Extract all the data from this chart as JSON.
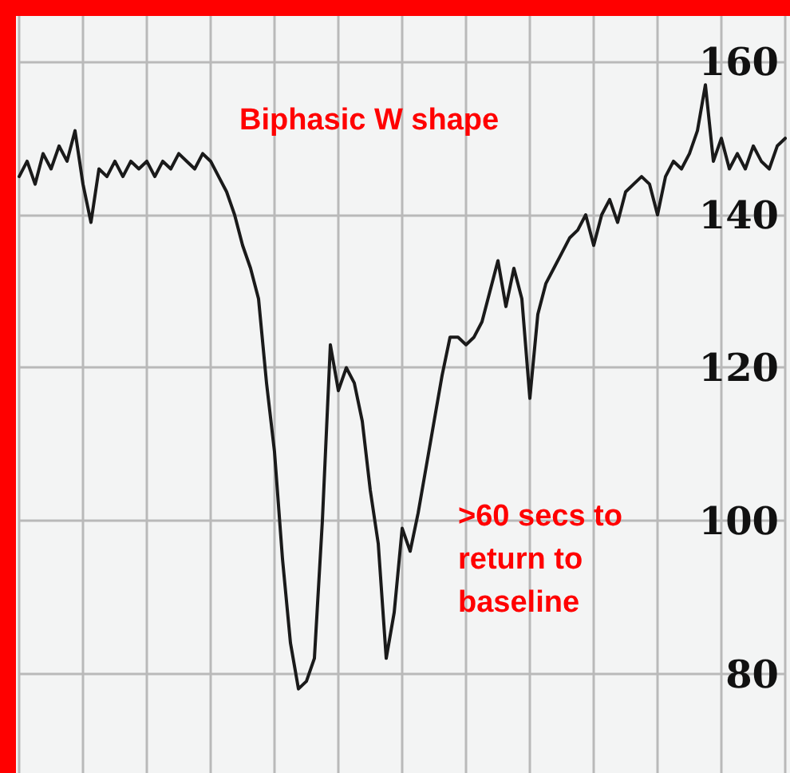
{
  "chart_data": {
    "type": "line",
    "categories": [
      null,
      null,
      null,
      null,
      null,
      null,
      null,
      null,
      null,
      null,
      null,
      null,
      null,
      null,
      null,
      null,
      null,
      null,
      null,
      null,
      null,
      null,
      null,
      null,
      null,
      null,
      null,
      null,
      null,
      null,
      null,
      null,
      null,
      null,
      null,
      null,
      null,
      null,
      null,
      null,
      null,
      null,
      null,
      null,
      null,
      null,
      null,
      null,
      null,
      null,
      null,
      null,
      null,
      null,
      null,
      null,
      null,
      null,
      null,
      null,
      null,
      null,
      null,
      null,
      null,
      null,
      null,
      null,
      null,
      null,
      null,
      null,
      null,
      null,
      null,
      null,
      null,
      null,
      null,
      null,
      null,
      null,
      null,
      null,
      null,
      null,
      null,
      null,
      null,
      null,
      null,
      null,
      null,
      null,
      null,
      null,
      null
    ],
    "series": [
      {
        "color": "#1a1a1a",
        "values": [
          145,
          147,
          144,
          148,
          146,
          149,
          147,
          151,
          144,
          139,
          146,
          145,
          147,
          145,
          147,
          146,
          147,
          145,
          147,
          146,
          148,
          147,
          146,
          148,
          147,
          145,
          143,
          140,
          136,
          133,
          129,
          118,
          109,
          95,
          84,
          78,
          79,
          82,
          100,
          123,
          117,
          120,
          118,
          113,
          104,
          97,
          82,
          88,
          99,
          96,
          101,
          107,
          113,
          119,
          124,
          124,
          123,
          124,
          126,
          130,
          134,
          128,
          133,
          129,
          116,
          127,
          131,
          133,
          135,
          137,
          138,
          140,
          136,
          140,
          142,
          139,
          143,
          144,
          145,
          144,
          140,
          145,
          147,
          146,
          148,
          151,
          157,
          147,
          150,
          146,
          148,
          146,
          149,
          147,
          146,
          149,
          150
        ]
      }
    ],
    "ylim": [
      67,
      166
    ],
    "yticks": [
      80,
      100,
      120,
      140,
      160
    ],
    "annotations": [
      "Biphasic W shape",
      ">60 secs to return to baseline"
    ],
    "grid": true,
    "line_style": "solid",
    "tick_labels": "y"
  }
}
